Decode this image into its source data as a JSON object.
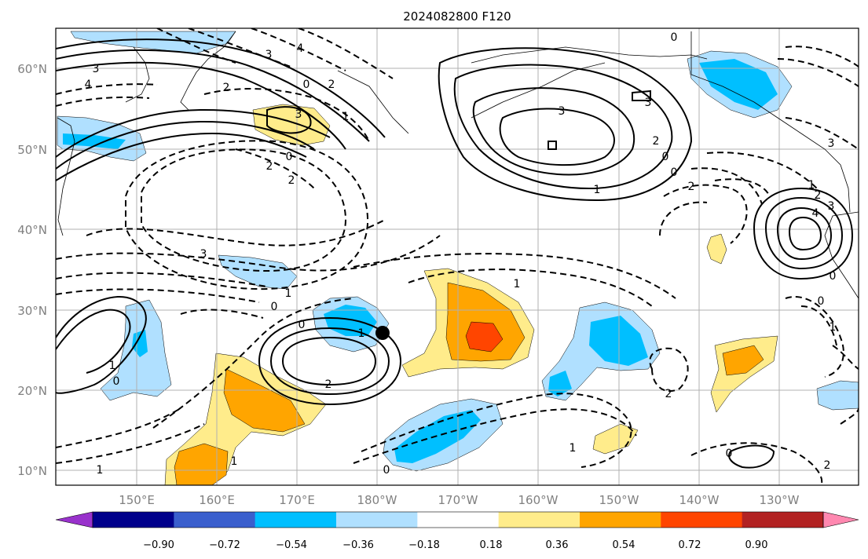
{
  "title": "2024082800 F120",
  "lat_labels": [
    "60°N",
    "50°N",
    "40°N",
    "30°N",
    "20°N",
    "10°N"
  ],
  "lon_labels": [
    "150°E",
    "160°E",
    "170°E",
    "180°W",
    "170°W",
    "160°W",
    "150°W",
    "140°W",
    "130°W"
  ],
  "colorbar": {
    "tick_labels": [
      "−0.90",
      "−0.72",
      "−0.54",
      "−0.36",
      "−0.18",
      "0.18",
      "0.36",
      "0.54",
      "0.72",
      "0.90"
    ],
    "colors": [
      "#9932cc",
      "#00008b",
      "#3a5fcd",
      "#00bfff",
      "#b0e0ff",
      "#ffffff",
      "#ffec8b",
      "#ffa500",
      "#ff4500",
      "#b22222",
      "#ff88b0"
    ]
  },
  "contour_labels": [
    "3",
    "4",
    "3",
    "4",
    "2",
    "0",
    "2",
    "3",
    "1",
    "0",
    "2",
    "2",
    "3",
    "3",
    "2",
    "0",
    "0",
    "1",
    "2",
    "3",
    "2",
    "1",
    "1",
    "2",
    "3",
    "4",
    "0",
    "0",
    "1",
    "3",
    "1",
    "0",
    "0",
    "1",
    "1",
    "2",
    "1",
    "1",
    "0",
    "2",
    "0",
    "1",
    "0",
    "0"
  ],
  "marker": "storm-center-dot"
}
